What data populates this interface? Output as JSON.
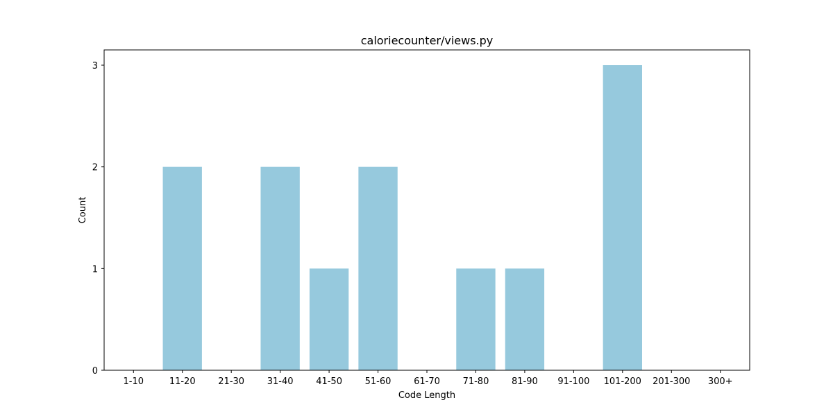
{
  "chart_data": {
    "type": "bar",
    "title": "caloriecounter/views.py",
    "xlabel": "Code Length",
    "ylabel": "Count",
    "categories": [
      "1-10",
      "11-20",
      "21-30",
      "31-40",
      "41-50",
      "51-60",
      "61-70",
      "71-80",
      "81-90",
      "91-100",
      "101-200",
      "201-300",
      "300+"
    ],
    "values": [
      0,
      2,
      0,
      2,
      1,
      2,
      0,
      1,
      1,
      0,
      3,
      0,
      0
    ],
    "yticks": [
      "0",
      "1",
      "2",
      "3"
    ],
    "ylim": [
      0,
      3.15
    ],
    "bar_color": "#96c9dd",
    "grid": false,
    "legend": "none"
  }
}
